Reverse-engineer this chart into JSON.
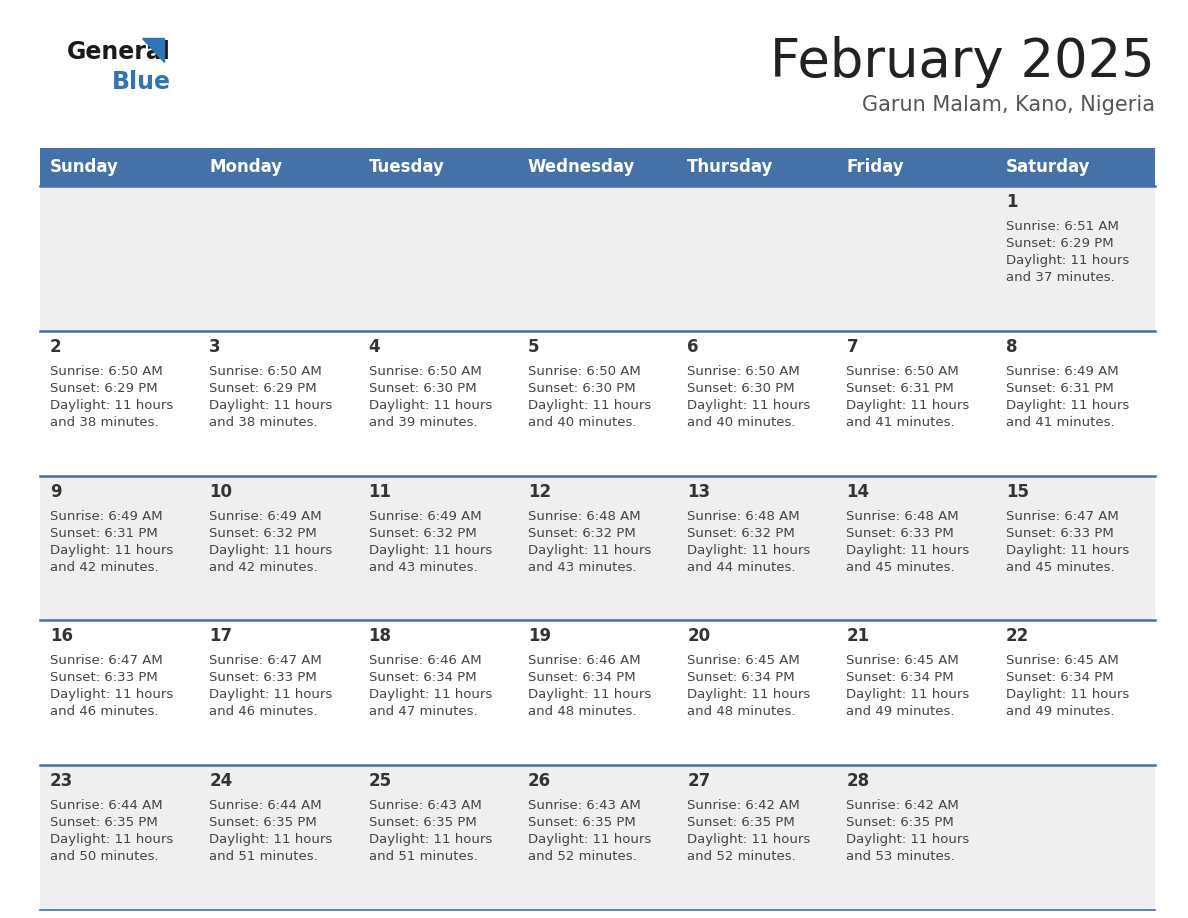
{
  "title": "February 2025",
  "subtitle": "Garun Malam, Kano, Nigeria",
  "days_of_week": [
    "Sunday",
    "Monday",
    "Tuesday",
    "Wednesday",
    "Thursday",
    "Friday",
    "Saturday"
  ],
  "header_bg": "#4472A8",
  "header_text": "#FFFFFF",
  "row_bg_even": "#EFEFEF",
  "row_bg_odd": "#FFFFFF",
  "divider_color": "#4472A8",
  "day_num_color": "#333333",
  "cell_text_color": "#444444",
  "title_color": "#222222",
  "subtitle_color": "#555555",
  "logo_general_color": "#1a1a1a",
  "logo_blue_color": "#2E75B6",
  "calendar_data": [
    [
      {
        "day": "",
        "sunrise": "",
        "sunset": "",
        "daylight": ""
      },
      {
        "day": "",
        "sunrise": "",
        "sunset": "",
        "daylight": ""
      },
      {
        "day": "",
        "sunrise": "",
        "sunset": "",
        "daylight": ""
      },
      {
        "day": "",
        "sunrise": "",
        "sunset": "",
        "daylight": ""
      },
      {
        "day": "",
        "sunrise": "",
        "sunset": "",
        "daylight": ""
      },
      {
        "day": "",
        "sunrise": "",
        "sunset": "",
        "daylight": ""
      },
      {
        "day": "1",
        "sunrise": "6:51 AM",
        "sunset": "6:29 PM",
        "daylight": "11 hours and 37 minutes."
      }
    ],
    [
      {
        "day": "2",
        "sunrise": "6:50 AM",
        "sunset": "6:29 PM",
        "daylight": "11 hours and 38 minutes."
      },
      {
        "day": "3",
        "sunrise": "6:50 AM",
        "sunset": "6:29 PM",
        "daylight": "11 hours and 38 minutes."
      },
      {
        "day": "4",
        "sunrise": "6:50 AM",
        "sunset": "6:30 PM",
        "daylight": "11 hours and 39 minutes."
      },
      {
        "day": "5",
        "sunrise": "6:50 AM",
        "sunset": "6:30 PM",
        "daylight": "11 hours and 40 minutes."
      },
      {
        "day": "6",
        "sunrise": "6:50 AM",
        "sunset": "6:30 PM",
        "daylight": "11 hours and 40 minutes."
      },
      {
        "day": "7",
        "sunrise": "6:50 AM",
        "sunset": "6:31 PM",
        "daylight": "11 hours and 41 minutes."
      },
      {
        "day": "8",
        "sunrise": "6:49 AM",
        "sunset": "6:31 PM",
        "daylight": "11 hours and 41 minutes."
      }
    ],
    [
      {
        "day": "9",
        "sunrise": "6:49 AM",
        "sunset": "6:31 PM",
        "daylight": "11 hours and 42 minutes."
      },
      {
        "day": "10",
        "sunrise": "6:49 AM",
        "sunset": "6:32 PM",
        "daylight": "11 hours and 42 minutes."
      },
      {
        "day": "11",
        "sunrise": "6:49 AM",
        "sunset": "6:32 PM",
        "daylight": "11 hours and 43 minutes."
      },
      {
        "day": "12",
        "sunrise": "6:48 AM",
        "sunset": "6:32 PM",
        "daylight": "11 hours and 43 minutes."
      },
      {
        "day": "13",
        "sunrise": "6:48 AM",
        "sunset": "6:32 PM",
        "daylight": "11 hours and 44 minutes."
      },
      {
        "day": "14",
        "sunrise": "6:48 AM",
        "sunset": "6:33 PM",
        "daylight": "11 hours and 45 minutes."
      },
      {
        "day": "15",
        "sunrise": "6:47 AM",
        "sunset": "6:33 PM",
        "daylight": "11 hours and 45 minutes."
      }
    ],
    [
      {
        "day": "16",
        "sunrise": "6:47 AM",
        "sunset": "6:33 PM",
        "daylight": "11 hours and 46 minutes."
      },
      {
        "day": "17",
        "sunrise": "6:47 AM",
        "sunset": "6:33 PM",
        "daylight": "11 hours and 46 minutes."
      },
      {
        "day": "18",
        "sunrise": "6:46 AM",
        "sunset": "6:34 PM",
        "daylight": "11 hours and 47 minutes."
      },
      {
        "day": "19",
        "sunrise": "6:46 AM",
        "sunset": "6:34 PM",
        "daylight": "11 hours and 48 minutes."
      },
      {
        "day": "20",
        "sunrise": "6:45 AM",
        "sunset": "6:34 PM",
        "daylight": "11 hours and 48 minutes."
      },
      {
        "day": "21",
        "sunrise": "6:45 AM",
        "sunset": "6:34 PM",
        "daylight": "11 hours and 49 minutes."
      },
      {
        "day": "22",
        "sunrise": "6:45 AM",
        "sunset": "6:34 PM",
        "daylight": "11 hours and 49 minutes."
      }
    ],
    [
      {
        "day": "23",
        "sunrise": "6:44 AM",
        "sunset": "6:35 PM",
        "daylight": "11 hours and 50 minutes."
      },
      {
        "day": "24",
        "sunrise": "6:44 AM",
        "sunset": "6:35 PM",
        "daylight": "11 hours and 51 minutes."
      },
      {
        "day": "25",
        "sunrise": "6:43 AM",
        "sunset": "6:35 PM",
        "daylight": "11 hours and 51 minutes."
      },
      {
        "day": "26",
        "sunrise": "6:43 AM",
        "sunset": "6:35 PM",
        "daylight": "11 hours and 52 minutes."
      },
      {
        "day": "27",
        "sunrise": "6:42 AM",
        "sunset": "6:35 PM",
        "daylight": "11 hours and 52 minutes."
      },
      {
        "day": "28",
        "sunrise": "6:42 AM",
        "sunset": "6:35 PM",
        "daylight": "11 hours and 53 minutes."
      },
      {
        "day": "",
        "sunrise": "",
        "sunset": "",
        "daylight": ""
      }
    ]
  ]
}
